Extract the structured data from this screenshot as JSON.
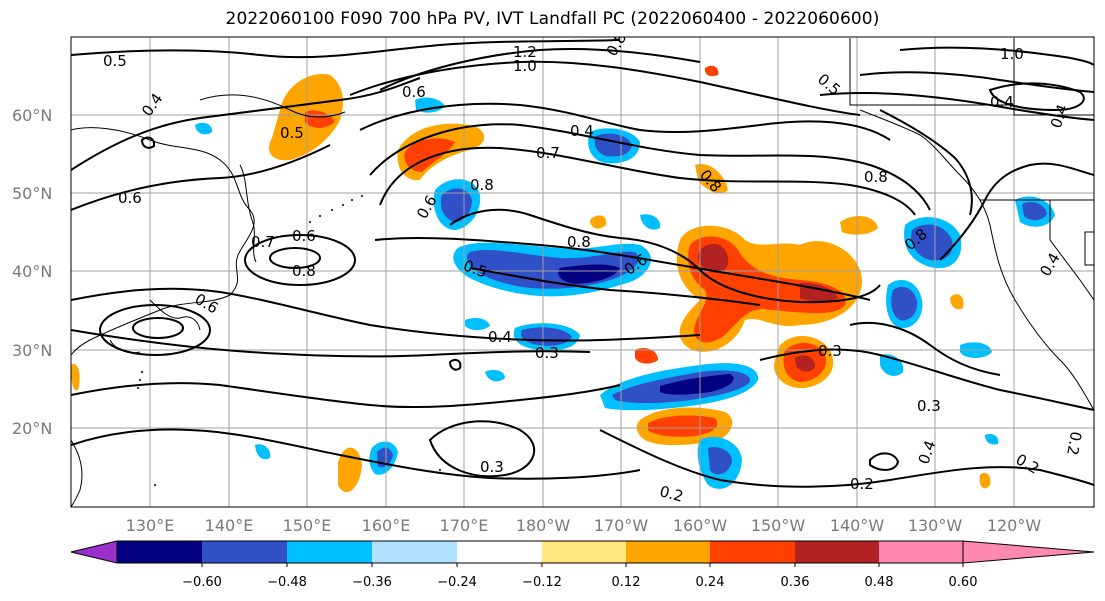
{
  "title": "2022060100 F090 700 hPa PV, IVT Landfall PC (2022060400 - 2022060600)",
  "axes": {
    "lat_ticks": [
      "60°N",
      "50°N",
      "40°N",
      "30°N",
      "20°N"
    ],
    "lon_ticks": [
      "130°E",
      "140°E",
      "150°E",
      "160°E",
      "170°E",
      "180°W",
      "170°W",
      "160°W",
      "150°W",
      "140°W",
      "130°W",
      "120°W"
    ]
  },
  "contour_labels": [
    "0.5",
    "1.2",
    "1.0",
    "0.8",
    "0.6",
    "0.4",
    "0.5",
    "0.4",
    "0.6",
    "0.7",
    "0.8",
    "0.6",
    "0.8",
    "0.6",
    "0.7",
    "0.6",
    "0.8",
    "0.5",
    "0.8",
    "0.6",
    "0.4",
    "0.3",
    "0.3",
    "0.3",
    "0.2",
    "0.2",
    "0.3",
    "0.4",
    "0.2",
    "0.8",
    "0.5",
    "0.4",
    "1.0",
    "0.4",
    "0.2",
    "0.8",
    "0.4"
  ],
  "colorbar": {
    "tick_labels": [
      "−0.60",
      "−0.48",
      "−0.36",
      "−0.24",
      "−0.12",
      "0.12",
      "0.24",
      "0.36",
      "0.48",
      "0.60"
    ],
    "colors": [
      "#9932cc",
      "#000080",
      "#3050c8",
      "#00bfff",
      "#b0e0ff",
      "#ffffff",
      "#ffe680",
      "#ffa500",
      "#ff4000",
      "#b22222",
      "#ff88b0"
    ]
  },
  "chart_data": {
    "type": "heatmap",
    "title": "2022060100 F090 700 hPa PV, IVT Landfall PC (2022060400 - 2022060600)",
    "x_ticks": [
      "130°E",
      "140°E",
      "150°E",
      "160°E",
      "170°E",
      "180°W",
      "170°W",
      "160°W",
      "150°W",
      "140°W",
      "130°W",
      "120°W"
    ],
    "y_ticks": [
      "60°N",
      "50°N",
      "40°N",
      "30°N",
      "20°N"
    ],
    "color_levels": [
      -0.6,
      -0.48,
      -0.36,
      -0.24,
      -0.12,
      0.12,
      0.24,
      0.36,
      0.48,
      0.6
    ],
    "contour_levels": [
      0.2,
      0.3,
      0.4,
      0.5,
      0.6,
      0.7,
      0.8,
      1.0,
      1.2
    ]
  }
}
